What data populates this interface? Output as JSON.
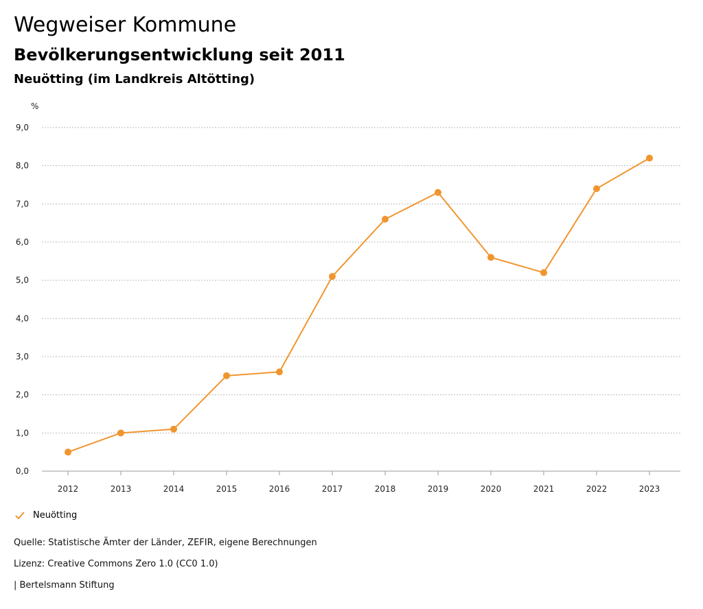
{
  "header": {
    "title": "Wegweiser Kommune",
    "subtitle": "Bevölkerungsentwicklung seit 2011",
    "region": "Neuötting (im Landkreis Altötting)"
  },
  "colors": {
    "series": "#F0952E",
    "grid": "#BBBBBB",
    "axis": "#999999"
  },
  "chart_data": {
    "type": "line",
    "title": "Bevölkerungsentwicklung seit 2011",
    "ylabel": "%",
    "xlabel": "",
    "ylim": [
      0,
      9
    ],
    "yticks": [
      0,
      1,
      2,
      3,
      4,
      5,
      6,
      7,
      8,
      9
    ],
    "ytick_labels": [
      "0,0",
      "1,0",
      "2,0",
      "3,0",
      "4,0",
      "5,0",
      "6,0",
      "7,0",
      "8,0",
      "9,0"
    ],
    "categories": [
      "2012",
      "2013",
      "2014",
      "2015",
      "2016",
      "2017",
      "2018",
      "2019",
      "2020",
      "2021",
      "2022",
      "2023"
    ],
    "series": [
      {
        "name": "Neuötting",
        "values": [
          0.5,
          1.0,
          1.1,
          2.5,
          2.6,
          5.1,
          6.6,
          7.3,
          5.6,
          5.2,
          7.4,
          8.2
        ]
      }
    ],
    "grid": true,
    "legend_position": "bottom-left"
  },
  "legend": {
    "items": [
      {
        "label": "Neuötting",
        "icon": "check-icon"
      }
    ]
  },
  "footer": {
    "source": "Quelle: Statistische Ämter der Länder, ZEFIR, eigene Berechnungen",
    "license": "Lizenz: Creative Commons Zero 1.0 (CC0 1.0)",
    "credit": "| Bertelsmann Stiftung"
  }
}
